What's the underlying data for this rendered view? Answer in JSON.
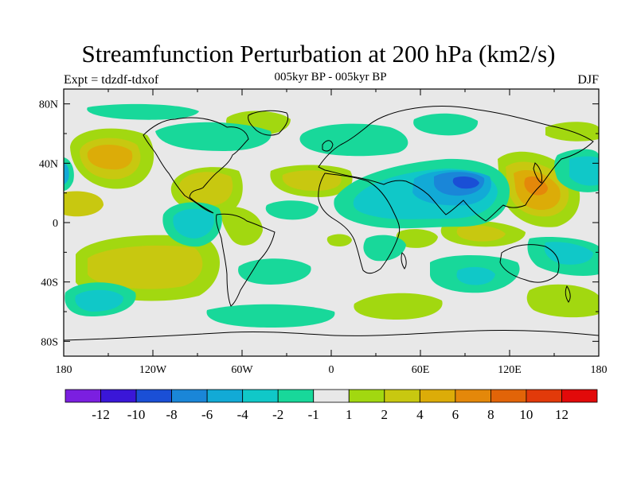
{
  "title": "Streamfunction Perturbation at 200 hPa (km2/s)",
  "subtitle": "005kyr BP - 005kyr BP",
  "left_string": "Expt = tdzdf-tdxof",
  "right_string": "DJF",
  "lat_labels": [
    "80N",
    "40N",
    "0",
    "40S",
    "80S"
  ],
  "lon_labels": [
    "180",
    "120W",
    "60W",
    "0",
    "60E",
    "120E",
    "180"
  ],
  "colorbar": {
    "colors": [
      "#7b1fe0",
      "#3a16d8",
      "#1a4fd6",
      "#1a86d8",
      "#12aad6",
      "#10c8c8",
      "#18d89a",
      "#e8e8e8",
      "#a2d810",
      "#c8c810",
      "#dcac08",
      "#e4880a",
      "#e26408",
      "#e23a0a",
      "#e20a0a"
    ],
    "labels": [
      "-12",
      "-10",
      "-8",
      "-6",
      "-4",
      "-2",
      "-1",
      "1",
      "2",
      "4",
      "6",
      "8",
      "10",
      "12"
    ]
  },
  "chart_data": {
    "type": "heatmap",
    "title": "Streamfunction Perturbation at 200 hPa (km2/s)",
    "subtitle": "005kyr BP - 005kyr BP",
    "x_range": [
      -180,
      180
    ],
    "y_range": [
      -90,
      90
    ],
    "contour_levels": [
      -12,
      -10,
      -8,
      -6,
      -4,
      -2,
      -1,
      1,
      2,
      4,
      6,
      8,
      10,
      12
    ],
    "anomaly_centers": [
      {
        "lon": -147,
        "lat": 45,
        "value": 6
      },
      {
        "lon": -95,
        "lat": 25,
        "value": 4
      },
      {
        "lon": -172,
        "lat": 18,
        "value": 2
      },
      {
        "lon": -82,
        "lat": 5,
        "value": 2
      },
      {
        "lon": -20,
        "lat": 25,
        "value": 4
      },
      {
        "lon": -150,
        "lat": -25,
        "value": 2
      },
      {
        "lon": -50,
        "lat": -25,
        "value": 2
      },
      {
        "lon": 140,
        "lat": 25,
        "value": 8
      },
      {
        "lon": 155,
        "lat": 50,
        "value": 2
      },
      {
        "lon": 100,
        "lat": -5,
        "value": 4
      },
      {
        "lon": 45,
        "lat": -55,
        "value": 2
      },
      {
        "lon": 165,
        "lat": -55,
        "value": 2
      },
      {
        "lon": 90,
        "lat": 28,
        "value": -6
      },
      {
        "lon": 55,
        "lat": 10,
        "value": -4
      },
      {
        "lon": -110,
        "lat": 0,
        "value": -4
      },
      {
        "lon": 175,
        "lat": 40,
        "value": -4
      },
      {
        "lon": -170,
        "lat": 40,
        "value": -2
      },
      {
        "lon": -160,
        "lat": -55,
        "value": -4
      },
      {
        "lon": 100,
        "lat": -40,
        "value": -4
      },
      {
        "lon": 150,
        "lat": -20,
        "value": -2
      },
      {
        "lon": -40,
        "lat": 70,
        "value": -2
      },
      {
        "lon": -40,
        "lat": 0,
        "value": -2
      },
      {
        "lon": 10,
        "lat": 40,
        "value": -2
      },
      {
        "lon": 40,
        "lat": -25,
        "value": -2
      }
    ]
  }
}
